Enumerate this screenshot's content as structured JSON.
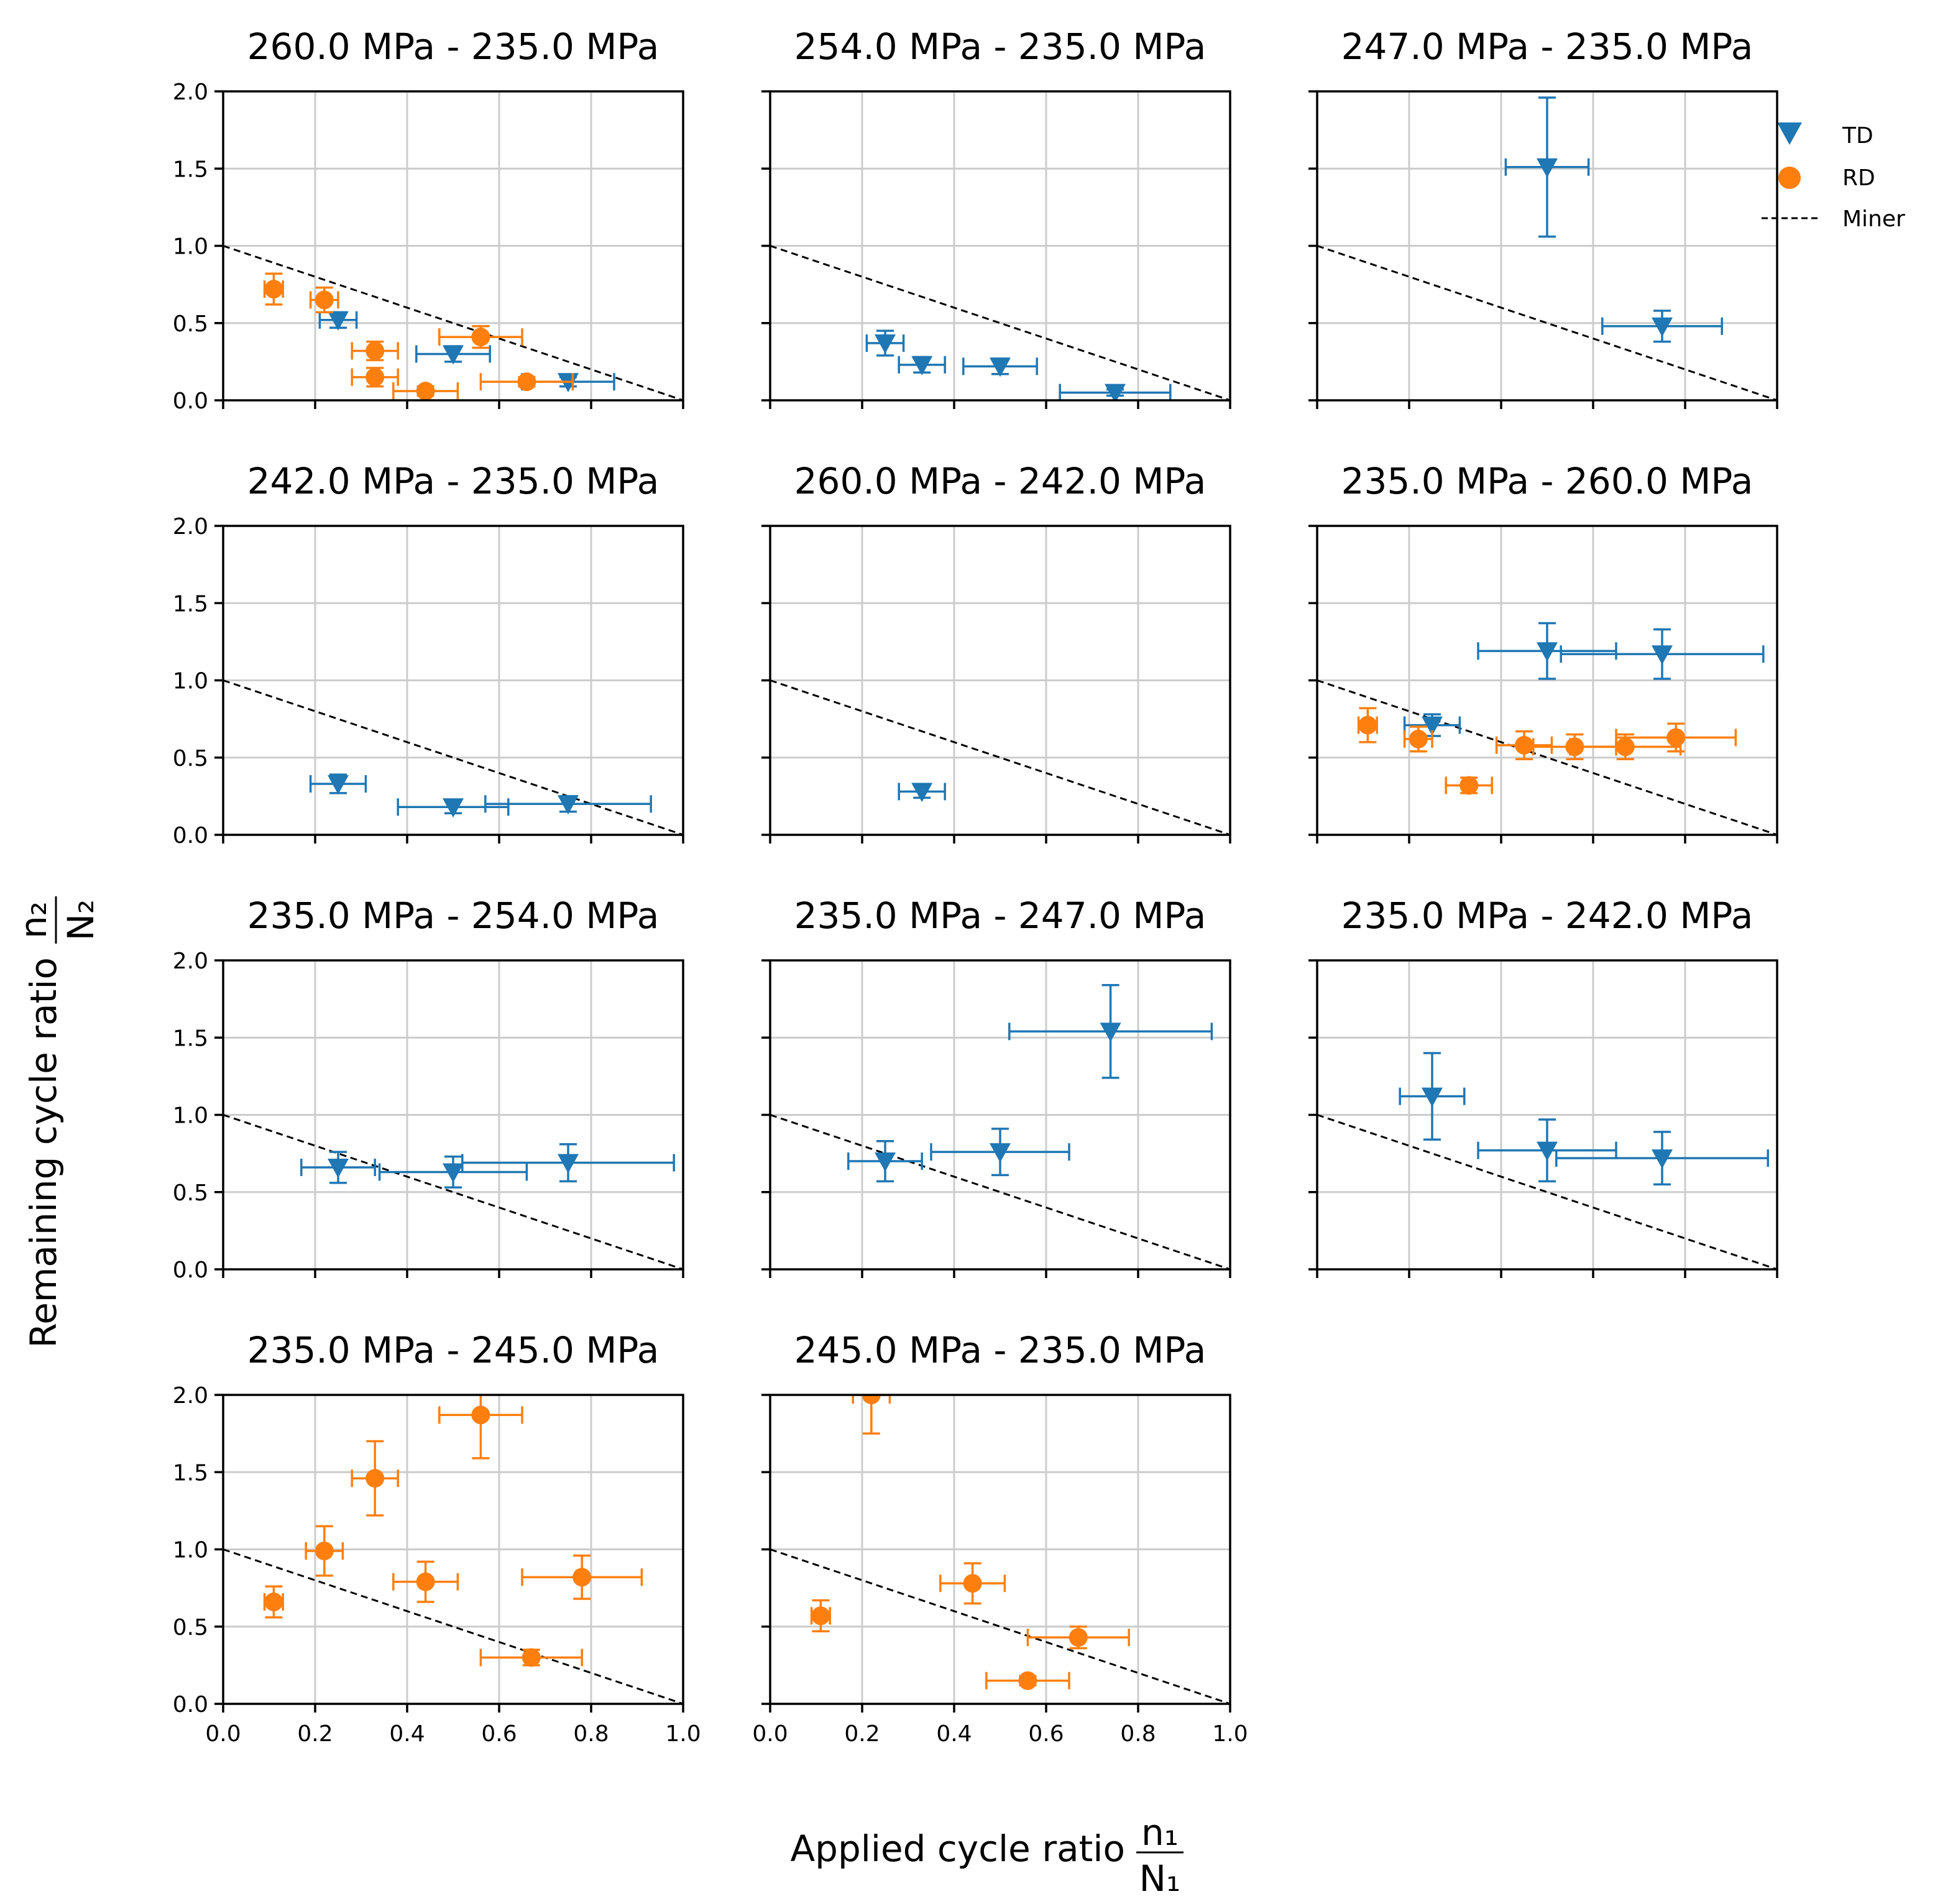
{
  "figure": {
    "xlabel": "Applied cycle ratio",
    "ylabel": "Remaining cycle ratio",
    "xlabel_fraction": {
      "num": "n₁",
      "den": "N₁"
    },
    "ylabel_fraction": {
      "num": "n₂",
      "den": "N₂"
    }
  },
  "legend": {
    "placement": "top-right",
    "entries": [
      {
        "label": "TD",
        "marker": "triangle-down-icon",
        "color": "#1f77b4"
      },
      {
        "label": "RD",
        "marker": "circle-icon",
        "color": "#ff7f0e"
      },
      {
        "label": "Miner",
        "marker": "dashed-line-icon",
        "color": "#000000"
      }
    ]
  },
  "colors": {
    "TD": "#1f77b4",
    "RD": "#ff7f0e",
    "miner": "#000000",
    "grid": "#cccccc"
  },
  "chart_data": [
    {
      "type": "scatter",
      "title": "260.0 MPa - 235.0 MPa",
      "xlim": [
        0,
        1
      ],
      "ylim": [
        0,
        2
      ],
      "xticks": [
        "0.0",
        "0.2",
        "0.4",
        "0.6",
        "0.8",
        "1.0"
      ],
      "yticks": [
        "0.0",
        "0.5",
        "1.0",
        "1.5",
        "2.0"
      ],
      "show_xticklabels": false,
      "show_yticklabels": true,
      "grid": true,
      "miner_line": [
        [
          0,
          1
        ],
        [
          1,
          0
        ]
      ],
      "series": [
        {
          "name": "TD",
          "points": [
            {
              "x": 0.25,
              "y": 0.52,
              "xerr": 0.04,
              "yerr": 0.05
            },
            {
              "x": 0.5,
              "y": 0.3,
              "xerr": 0.08,
              "yerr": 0.05
            },
            {
              "x": 0.75,
              "y": 0.12,
              "xerr": 0.1,
              "yerr": 0.03
            }
          ]
        },
        {
          "name": "RD",
          "points": [
            {
              "x": 0.11,
              "y": 0.72,
              "xerr": 0.02,
              "yerr": 0.1
            },
            {
              "x": 0.22,
              "y": 0.65,
              "xerr": 0.03,
              "yerr": 0.08
            },
            {
              "x": 0.33,
              "y": 0.32,
              "xerr": 0.05,
              "yerr": 0.06
            },
            {
              "x": 0.33,
              "y": 0.15,
              "xerr": 0.05,
              "yerr": 0.06
            },
            {
              "x": 0.44,
              "y": 0.06,
              "xerr": 0.07,
              "yerr": 0.03
            },
            {
              "x": 0.56,
              "y": 0.41,
              "xerr": 0.09,
              "yerr": 0.07
            },
            {
              "x": 0.66,
              "y": 0.12,
              "xerr": 0.1,
              "yerr": 0.03
            }
          ]
        }
      ]
    },
    {
      "type": "scatter",
      "title": "254.0 MPa - 235.0 MPa",
      "xlim": [
        0,
        1
      ],
      "ylim": [
        0,
        2
      ],
      "xticks": [
        "0.0",
        "0.2",
        "0.4",
        "0.6",
        "0.8",
        "1.0"
      ],
      "yticks": [
        "0.0",
        "0.5",
        "1.0",
        "1.5",
        "2.0"
      ],
      "show_xticklabels": false,
      "show_yticklabels": false,
      "grid": true,
      "miner_line": [
        [
          0,
          1
        ],
        [
          1,
          0
        ]
      ],
      "series": [
        {
          "name": "TD",
          "points": [
            {
              "x": 0.25,
              "y": 0.37,
              "xerr": 0.04,
              "yerr": 0.08
            },
            {
              "x": 0.33,
              "y": 0.23,
              "xerr": 0.05,
              "yerr": 0.05
            },
            {
              "x": 0.5,
              "y": 0.22,
              "xerr": 0.08,
              "yerr": 0.05
            },
            {
              "x": 0.75,
              "y": 0.05,
              "xerr": 0.12,
              "yerr": 0.02
            }
          ]
        },
        {
          "name": "RD",
          "points": []
        }
      ]
    },
    {
      "type": "scatter",
      "title": "247.0 MPa - 235.0 MPa",
      "xlim": [
        0,
        1
      ],
      "ylim": [
        0,
        2
      ],
      "xticks": [
        "0.0",
        "0.2",
        "0.4",
        "0.6",
        "0.8",
        "1.0"
      ],
      "yticks": [
        "0.0",
        "0.5",
        "1.0",
        "1.5",
        "2.0"
      ],
      "show_xticklabels": false,
      "show_yticklabels": false,
      "grid": true,
      "miner_line": [
        [
          0,
          1
        ],
        [
          1,
          0
        ]
      ],
      "series": [
        {
          "name": "TD",
          "points": [
            {
              "x": 0.5,
              "y": 1.51,
              "xerr": 0.09,
              "yerr": 0.45
            },
            {
              "x": 0.75,
              "y": 0.48,
              "xerr": 0.13,
              "yerr": 0.1
            }
          ]
        },
        {
          "name": "RD",
          "points": []
        }
      ]
    },
    {
      "type": "scatter",
      "title": "242.0 MPa - 235.0 MPa",
      "xlim": [
        0,
        1
      ],
      "ylim": [
        0,
        2
      ],
      "xticks": [
        "0.0",
        "0.2",
        "0.4",
        "0.6",
        "0.8",
        "1.0"
      ],
      "yticks": [
        "0.0",
        "0.5",
        "1.0",
        "1.5",
        "2.0"
      ],
      "show_xticklabels": false,
      "show_yticklabels": true,
      "grid": true,
      "miner_line": [
        [
          0,
          1
        ],
        [
          1,
          0
        ]
      ],
      "series": [
        {
          "name": "TD",
          "points": [
            {
              "x": 0.25,
              "y": 0.33,
              "xerr": 0.06,
              "yerr": 0.06
            },
            {
              "x": 0.5,
              "y": 0.18,
              "xerr": 0.12,
              "yerr": 0.04
            },
            {
              "x": 0.75,
              "y": 0.2,
              "xerr": 0.18,
              "yerr": 0.05
            }
          ]
        },
        {
          "name": "RD",
          "points": []
        }
      ]
    },
    {
      "type": "scatter",
      "title": "260.0 MPa - 242.0 MPa",
      "xlim": [
        0,
        1
      ],
      "ylim": [
        0,
        2
      ],
      "xticks": [
        "0.0",
        "0.2",
        "0.4",
        "0.6",
        "0.8",
        "1.0"
      ],
      "yticks": [
        "0.0",
        "0.5",
        "1.0",
        "1.5",
        "2.0"
      ],
      "show_xticklabels": false,
      "show_yticklabels": false,
      "grid": true,
      "miner_line": [
        [
          0,
          1
        ],
        [
          1,
          0
        ]
      ],
      "series": [
        {
          "name": "TD",
          "points": [
            {
              "x": 0.33,
              "y": 0.28,
              "xerr": 0.05,
              "yerr": 0.04
            }
          ]
        },
        {
          "name": "RD",
          "points": []
        }
      ]
    },
    {
      "type": "scatter",
      "title": "235.0 MPa - 260.0 MPa",
      "xlim": [
        0,
        1
      ],
      "ylim": [
        0,
        2
      ],
      "xticks": [
        "0.0",
        "0.2",
        "0.4",
        "0.6",
        "0.8",
        "1.0"
      ],
      "yticks": [
        "0.0",
        "0.5",
        "1.0",
        "1.5",
        "2.0"
      ],
      "show_xticklabels": false,
      "show_yticklabels": false,
      "grid": true,
      "miner_line": [
        [
          0,
          1
        ],
        [
          1,
          0
        ]
      ],
      "series": [
        {
          "name": "TD",
          "points": [
            {
              "x": 0.25,
              "y": 0.71,
              "xerr": 0.06,
              "yerr": 0.07
            },
            {
              "x": 0.5,
              "y": 1.19,
              "xerr": 0.15,
              "yerr": 0.18
            },
            {
              "x": 0.75,
              "y": 1.17,
              "xerr": 0.22,
              "yerr": 0.16
            }
          ]
        },
        {
          "name": "RD",
          "points": [
            {
              "x": 0.11,
              "y": 0.71,
              "xerr": 0.02,
              "yerr": 0.11
            },
            {
              "x": 0.22,
              "y": 0.62,
              "xerr": 0.03,
              "yerr": 0.08
            },
            {
              "x": 0.33,
              "y": 0.32,
              "xerr": 0.05,
              "yerr": 0.05
            },
            {
              "x": 0.45,
              "y": 0.58,
              "xerr": 0.06,
              "yerr": 0.09
            },
            {
              "x": 0.56,
              "y": 0.57,
              "xerr": 0.09,
              "yerr": 0.08
            },
            {
              "x": 0.67,
              "y": 0.57,
              "xerr": 0.12,
              "yerr": 0.08
            },
            {
              "x": 0.78,
              "y": 0.63,
              "xerr": 0.13,
              "yerr": 0.09
            }
          ]
        }
      ]
    },
    {
      "type": "scatter",
      "title": "235.0 MPa - 254.0 MPa",
      "xlim": [
        0,
        1
      ],
      "ylim": [
        0,
        2
      ],
      "xticks": [
        "0.0",
        "0.2",
        "0.4",
        "0.6",
        "0.8",
        "1.0"
      ],
      "yticks": [
        "0.0",
        "0.5",
        "1.0",
        "1.5",
        "2.0"
      ],
      "show_xticklabels": false,
      "show_yticklabels": true,
      "grid": true,
      "miner_line": [
        [
          0,
          1
        ],
        [
          1,
          0
        ]
      ],
      "series": [
        {
          "name": "TD",
          "points": [
            {
              "x": 0.25,
              "y": 0.66,
              "xerr": 0.08,
              "yerr": 0.1
            },
            {
              "x": 0.5,
              "y": 0.63,
              "xerr": 0.16,
              "yerr": 0.1
            },
            {
              "x": 0.75,
              "y": 0.69,
              "xerr": 0.23,
              "yerr": 0.12
            }
          ]
        },
        {
          "name": "RD",
          "points": []
        }
      ]
    },
    {
      "type": "scatter",
      "title": "235.0 MPa - 247.0 MPa",
      "xlim": [
        0,
        1
      ],
      "ylim": [
        0,
        2
      ],
      "xticks": [
        "0.0",
        "0.2",
        "0.4",
        "0.6",
        "0.8",
        "1.0"
      ],
      "yticks": [
        "0.0",
        "0.5",
        "1.0",
        "1.5",
        "2.0"
      ],
      "show_xticklabels": false,
      "show_yticklabels": false,
      "grid": true,
      "miner_line": [
        [
          0,
          1
        ],
        [
          1,
          0
        ]
      ],
      "series": [
        {
          "name": "TD",
          "points": [
            {
              "x": 0.25,
              "y": 0.7,
              "xerr": 0.08,
              "yerr": 0.13
            },
            {
              "x": 0.5,
              "y": 0.76,
              "xerr": 0.15,
              "yerr": 0.15
            },
            {
              "x": 0.74,
              "y": 1.54,
              "xerr": 0.22,
              "yerr": 0.3
            }
          ]
        },
        {
          "name": "RD",
          "points": []
        }
      ]
    },
    {
      "type": "scatter",
      "title": "235.0 MPa - 242.0 MPa",
      "xlim": [
        0,
        1
      ],
      "ylim": [
        0,
        2
      ],
      "xticks": [
        "0.0",
        "0.2",
        "0.4",
        "0.6",
        "0.8",
        "1.0"
      ],
      "yticks": [
        "0.0",
        "0.5",
        "1.0",
        "1.5",
        "2.0"
      ],
      "show_xticklabels": false,
      "show_yticklabels": false,
      "grid": true,
      "miner_line": [
        [
          0,
          1
        ],
        [
          1,
          0
        ]
      ],
      "series": [
        {
          "name": "TD",
          "points": [
            {
              "x": 0.25,
              "y": 1.12,
              "xerr": 0.07,
              "yerr": 0.28
            },
            {
              "x": 0.5,
              "y": 0.77,
              "xerr": 0.15,
              "yerr": 0.2
            },
            {
              "x": 0.75,
              "y": 0.72,
              "xerr": 0.23,
              "yerr": 0.17
            }
          ]
        },
        {
          "name": "RD",
          "points": []
        }
      ]
    },
    {
      "type": "scatter",
      "title": "235.0 MPa - 245.0 MPa",
      "xlim": [
        0,
        1
      ],
      "ylim": [
        0,
        2
      ],
      "xticks": [
        "0.0",
        "0.2",
        "0.4",
        "0.6",
        "0.8",
        "1.0"
      ],
      "yticks": [
        "0.0",
        "0.5",
        "1.0",
        "1.5",
        "2.0"
      ],
      "show_xticklabels": true,
      "show_yticklabels": true,
      "grid": true,
      "miner_line": [
        [
          0,
          1
        ],
        [
          1,
          0
        ]
      ],
      "series": [
        {
          "name": "TD",
          "points": []
        },
        {
          "name": "RD",
          "points": [
            {
              "x": 0.11,
              "y": 0.66,
              "xerr": 0.02,
              "yerr": 0.1
            },
            {
              "x": 0.22,
              "y": 0.99,
              "xerr": 0.04,
              "yerr": 0.16
            },
            {
              "x": 0.33,
              "y": 1.46,
              "xerr": 0.05,
              "yerr": 0.24
            },
            {
              "x": 0.44,
              "y": 0.79,
              "xerr": 0.07,
              "yerr": 0.13
            },
            {
              "x": 0.56,
              "y": 1.87,
              "xerr": 0.09,
              "yerr": 0.28
            },
            {
              "x": 0.67,
              "y": 0.3,
              "xerr": 0.11,
              "yerr": 0.05
            },
            {
              "x": 0.78,
              "y": 0.82,
              "xerr": 0.13,
              "yerr": 0.14
            }
          ]
        }
      ]
    },
    {
      "type": "scatter",
      "title": "245.0 MPa - 235.0 MPa",
      "xlim": [
        0,
        1
      ],
      "ylim": [
        0,
        2
      ],
      "xticks": [
        "0.0",
        "0.2",
        "0.4",
        "0.6",
        "0.8",
        "1.0"
      ],
      "yticks": [
        "0.0",
        "0.5",
        "1.0",
        "1.5",
        "2.0"
      ],
      "show_xticklabels": true,
      "show_yticklabels": false,
      "grid": true,
      "miner_line": [
        [
          0,
          1
        ],
        [
          1,
          0
        ]
      ],
      "series": [
        {
          "name": "TD",
          "points": []
        },
        {
          "name": "RD",
          "points": [
            {
              "x": 0.11,
              "y": 0.57,
              "xerr": 0.02,
              "yerr": 0.1
            },
            {
              "x": 0.22,
              "y": 2.0,
              "xerr": 0.04,
              "yerr": 0.25
            },
            {
              "x": 0.44,
              "y": 0.78,
              "xerr": 0.07,
              "yerr": 0.13
            },
            {
              "x": 0.56,
              "y": 0.15,
              "xerr": 0.09,
              "yerr": 0.03
            },
            {
              "x": 0.67,
              "y": 0.43,
              "xerr": 0.11,
              "yerr": 0.07
            }
          ]
        }
      ]
    }
  ]
}
